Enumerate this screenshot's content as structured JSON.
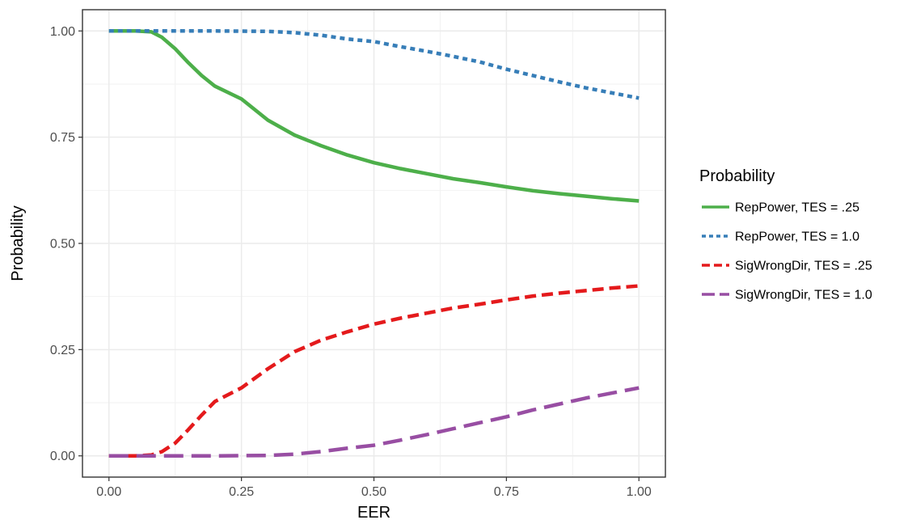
{
  "chart_data": {
    "type": "line",
    "title": "",
    "xlabel": "EER",
    "ylabel": "Probability",
    "xlim": [
      -0.05,
      1.05
    ],
    "ylim": [
      -0.05,
      1.05
    ],
    "x_ticks": [
      0,
      0.25,
      0.5,
      0.75,
      1
    ],
    "x_tick_labels": [
      "0.00",
      "0.25",
      "0.50",
      "0.75",
      "1.00"
    ],
    "y_ticks": [
      0,
      0.25,
      0.5,
      0.75,
      1
    ],
    "y_tick_labels": [
      "0.00",
      "0.25",
      "0.50",
      "0.75",
      "1.00"
    ],
    "grid": true,
    "legend": {
      "title": "Probability",
      "position": "right"
    },
    "series": [
      {
        "name": "RepPower, TES = .25",
        "color": "#4daf4a",
        "dash": "solid",
        "x": [
          0,
          0.05,
          0.08,
          0.1,
          0.125,
          0.15,
          0.175,
          0.2,
          0.25,
          0.3,
          0.35,
          0.4,
          0.45,
          0.5,
          0.55,
          0.6,
          0.65,
          0.7,
          0.75,
          0.8,
          0.85,
          0.9,
          0.95,
          1.0
        ],
        "y": [
          1.0,
          1.0,
          0.998,
          0.985,
          0.958,
          0.925,
          0.895,
          0.87,
          0.84,
          0.79,
          0.755,
          0.73,
          0.708,
          0.69,
          0.676,
          0.664,
          0.652,
          0.643,
          0.633,
          0.624,
          0.617,
          0.611,
          0.605,
          0.6
        ]
      },
      {
        "name": "RepPower, TES = 1.0",
        "color": "#377eb8",
        "dash": "dotted",
        "x": [
          0,
          0.1,
          0.2,
          0.3,
          0.35,
          0.4,
          0.45,
          0.5,
          0.55,
          0.6,
          0.65,
          0.7,
          0.75,
          0.8,
          0.85,
          0.9,
          0.95,
          1.0
        ],
        "y": [
          1.0,
          1.0,
          1.0,
          0.999,
          0.996,
          0.99,
          0.981,
          0.975,
          0.963,
          0.952,
          0.94,
          0.927,
          0.91,
          0.895,
          0.88,
          0.866,
          0.854,
          0.842
        ]
      },
      {
        "name": "SigWrongDir, TES = .25",
        "color": "#e41a1c",
        "dash": "dashed",
        "x": [
          0,
          0.05,
          0.08,
          0.1,
          0.125,
          0.15,
          0.175,
          0.2,
          0.25,
          0.3,
          0.35,
          0.4,
          0.45,
          0.5,
          0.55,
          0.6,
          0.65,
          0.7,
          0.75,
          0.8,
          0.85,
          0.9,
          0.95,
          1.0
        ],
        "y": [
          0.0,
          0.0,
          0.002,
          0.01,
          0.03,
          0.062,
          0.096,
          0.128,
          0.16,
          0.205,
          0.245,
          0.272,
          0.292,
          0.31,
          0.324,
          0.336,
          0.348,
          0.357,
          0.367,
          0.376,
          0.383,
          0.389,
          0.395,
          0.4
        ]
      },
      {
        "name": "SigWrongDir, TES = 1.0",
        "color": "#984ea3",
        "dash": "longdash",
        "x": [
          0,
          0.1,
          0.2,
          0.3,
          0.35,
          0.4,
          0.45,
          0.5,
          0.55,
          0.6,
          0.65,
          0.7,
          0.75,
          0.8,
          0.85,
          0.9,
          0.95,
          1.0
        ],
        "y": [
          0.0,
          0.0,
          0.0,
          0.001,
          0.004,
          0.01,
          0.018,
          0.025,
          0.037,
          0.05,
          0.064,
          0.078,
          0.092,
          0.108,
          0.122,
          0.136,
          0.148,
          0.16
        ]
      }
    ]
  }
}
